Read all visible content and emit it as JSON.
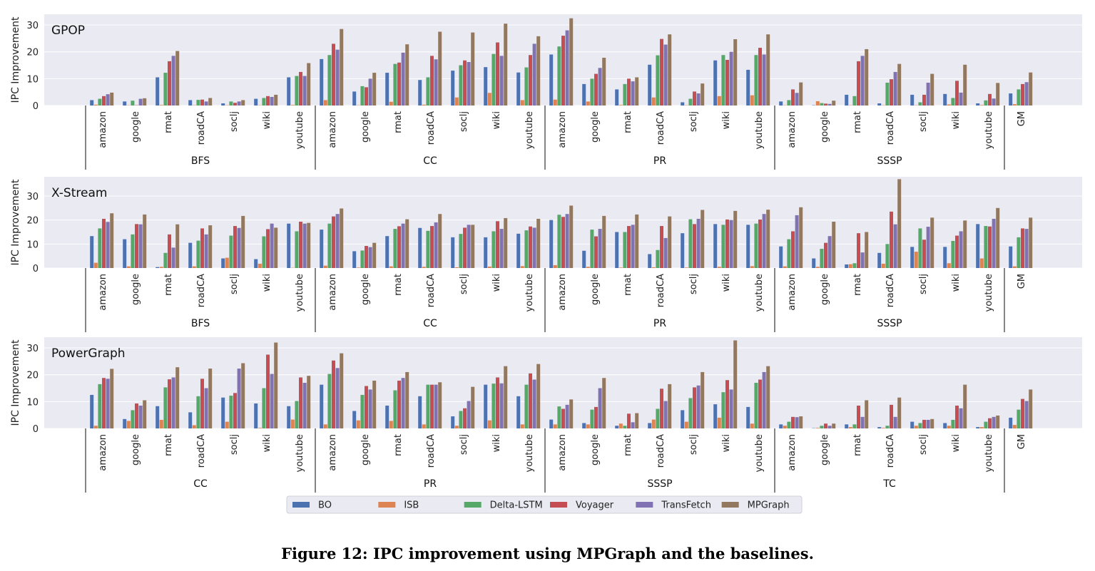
{
  "caption": "Figure 12: IPC improvement using MPGraph and the baselines.",
  "chart_data": {
    "type": "bar",
    "ylabel": "IPC Improvement",
    "legend": {
      "placement": "bottom-center",
      "series": [
        {
          "name": "BO",
          "color": "#4c72b0"
        },
        {
          "name": "ISB",
          "color": "#dd8452"
        },
        {
          "name": "Delta-LSTM",
          "color": "#55a868"
        },
        {
          "name": "Voyager",
          "color": "#c44e52"
        },
        {
          "name": "TransFetch",
          "color": "#8172b3"
        },
        {
          "name": "MPGraph",
          "color": "#937860"
        }
      ]
    },
    "datasets": [
      "amazon",
      "google",
      "rmat",
      "roadCA",
      "soclj",
      "wiki",
      "youtube"
    ],
    "gm_label": "GM",
    "panels": [
      {
        "title": "GPOP",
        "ylim": [
          0,
          34
        ],
        "yticks": [
          0,
          10,
          20,
          30
        ],
        "groups": [
          {
            "name": "BFS",
            "values": [
              [
                2,
                0.3,
                2.5,
                3.5,
                4.2,
                4.8
              ],
              [
                1.5,
                0.1,
                1.8,
                0.1,
                2.5,
                2.7
              ],
              [
                10.5,
                0.2,
                12.2,
                16.5,
                18.5,
                20.3
              ],
              [
                2,
                0.1,
                2.1,
                2.2,
                1.5,
                2.8
              ],
              [
                0.8,
                0.1,
                1.5,
                1,
                1.5,
                2
              ],
              [
                2.5,
                0.1,
                2.8,
                3.5,
                3.2,
                4
              ],
              [
                10.5,
                0.2,
                11,
                12.5,
                11,
                15.8
              ]
            ]
          },
          {
            "name": "CC",
            "values": [
              [
                17.3,
                2,
                18.8,
                23,
                20.8,
                28.5
              ],
              [
                5.2,
                0.1,
                7.2,
                6.8,
                10,
                12.2
              ],
              [
                12.2,
                1.4,
                15.5,
                16,
                19.7,
                22.8
              ],
              [
                9.5,
                0.3,
                10.5,
                18.5,
                17.2,
                27.5
              ],
              [
                13,
                3,
                15,
                16.8,
                16.2,
                27.2
              ],
              [
                14.3,
                4.7,
                19.2,
                23.5,
                18.5,
                30.5
              ],
              [
                12.3,
                2,
                14.2,
                18.8,
                23,
                25.8
              ]
            ]
          },
          {
            "name": "PR",
            "values": [
              [
                19,
                2.2,
                22,
                26,
                28,
                32.5
              ],
              [
                8,
                1.5,
                10,
                11.8,
                14,
                17.8
              ],
              [
                6,
                0.2,
                8,
                10,
                9,
                10.5
              ],
              [
                15.2,
                3,
                18.7,
                24.8,
                22.7,
                26.5
              ],
              [
                1.2,
                0.1,
                2.5,
                5.2,
                4.5,
                8.2
              ],
              [
                16.8,
                3.5,
                18.8,
                17,
                20,
                24.7
              ],
              [
                13.3,
                3.8,
                18.8,
                21.5,
                19,
                26.5
              ]
            ]
          },
          {
            "name": "SSSP",
            "values": [
              [
                1.5,
                0.1,
                2,
                6,
                4.7,
                8.6
              ],
              [
                0.1,
                1.6,
                0.9,
                0.7,
                0.6,
                1.8
              ],
              [
                4,
                0.1,
                3.5,
                16.5,
                18.5,
                21
              ],
              [
                0.8,
                0.1,
                8.5,
                9.8,
                12.5,
                15.5
              ],
              [
                4,
                0.1,
                1.2,
                4,
                8.5,
                11.8
              ],
              [
                4.3,
                0.4,
                2.8,
                9.2,
                4.8,
                15.2
              ],
              [
                0.8,
                0.2,
                1.9,
                4.3,
                2.6,
                8.4
              ]
            ]
          }
        ],
        "gm": [
          4.5,
          0.5,
          6,
          8,
          8.7,
          12.3
        ]
      },
      {
        "title": "X-Stream",
        "ylim": [
          0,
          38
        ],
        "yticks": [
          0,
          10,
          20,
          30
        ],
        "groups": [
          {
            "name": "BFS",
            "values": [
              [
                13.3,
                2.2,
                16.5,
                20.5,
                19.2,
                22.8
              ],
              [
                12,
                0.7,
                14,
                18.3,
                18.2,
                22.3
              ],
              [
                0.4,
                0.5,
                6.3,
                14,
                8.5,
                18.2
              ],
              [
                10.5,
                0.7,
                11.4,
                16.5,
                14,
                17.8
              ],
              [
                4,
                4.3,
                13.5,
                17.5,
                16.7,
                21.7
              ],
              [
                3.7,
                1.8,
                13.2,
                16.2,
                18.5,
                16.8
              ],
              [
                18.5,
                0.1,
                15.3,
                19.3,
                18.5,
                18.8
              ]
            ]
          },
          {
            "name": "CC",
            "values": [
              [
                16,
                1,
                18.5,
                21.5,
                22.5,
                24.8
              ],
              [
                7,
                0.2,
                7.3,
                9.2,
                8.7,
                10.5
              ],
              [
                13.3,
                0.7,
                16.3,
                17.4,
                18.5,
                20.3
              ],
              [
                16.7,
                0.5,
                15.5,
                17.5,
                19,
                22.5
              ],
              [
                12.8,
                0.3,
                14.2,
                16.8,
                18,
                18
              ],
              [
                12.8,
                0.6,
                15.3,
                19.5,
                16.3,
                20.8
              ],
              [
                14.3,
                0.8,
                15.7,
                17.3,
                16.8,
                20.5
              ]
            ]
          },
          {
            "name": "PR",
            "values": [
              [
                20,
                1.2,
                22.2,
                21.3,
                22.5,
                26
              ],
              [
                7.2,
                0.5,
                16,
                13.2,
                16.3,
                21.7
              ],
              [
                15,
                0.2,
                15,
                17.5,
                18,
                22.3
              ],
              [
                5.8,
                0.3,
                7.5,
                17.5,
                12.5,
                21.5
              ],
              [
                14.5,
                0.2,
                20.3,
                18.3,
                20.5,
                24.2
              ],
              [
                18.3,
                0.5,
                18,
                20.2,
                20,
                23.8
              ],
              [
                18,
                0.8,
                18.5,
                20.2,
                22.5,
                24.3
              ]
            ]
          },
          {
            "name": "SSSP",
            "values": [
              [
                9,
                0.7,
                12,
                15.3,
                22,
                25.3
              ],
              [
                4,
                0.5,
                8,
                10.5,
                13.3,
                19.3
              ],
              [
                1.5,
                1.6,
                2,
                14.5,
                6.5,
                15
              ],
              [
                6.3,
                1.8,
                10,
                23.5,
                18.2,
                37
              ],
              [
                8.8,
                6.8,
                16.5,
                11.8,
                17.2,
                21
              ],
              [
                8.8,
                2,
                11.3,
                13.5,
                15.3,
                19.8
              ],
              [
                18.3,
                4,
                17.5,
                17.3,
                20.5,
                25
              ]
            ]
          }
        ],
        "gm": [
          9,
          0.7,
          12.8,
          16.5,
          16.3,
          21
        ]
      },
      {
        "title": "PowerGraph",
        "ylim": [
          0,
          34
        ],
        "yticks": [
          0,
          10,
          20,
          30
        ],
        "groups": [
          {
            "name": "CC",
            "values": [
              [
                12.5,
                1,
                16.5,
                18.8,
                18.5,
                22.2
              ],
              [
                3.5,
                2.8,
                6.8,
                9.3,
                8.5,
                10.5
              ],
              [
                8.3,
                3.2,
                15.3,
                18.3,
                19,
                22.8
              ],
              [
                6,
                1.2,
                12,
                18.5,
                15,
                22.3
              ],
              [
                11.5,
                2.5,
                12.2,
                13.2,
                22.3,
                24.3
              ],
              [
                9.3,
                0.2,
                15,
                27.5,
                20.3,
                32
              ],
              [
                8.3,
                3.3,
                10.2,
                19,
                17,
                19.6
              ]
            ]
          },
          {
            "name": "PR",
            "values": [
              [
                16.3,
                1.5,
                20.3,
                25.3,
                22.5,
                28
              ],
              [
                6.5,
                3,
                12.5,
                15.8,
                14.5,
                17.8
              ],
              [
                8.5,
                2.8,
                14.2,
                17.8,
                18.8,
                21
              ],
              [
                12,
                1.5,
                16.3,
                16.3,
                16.3,
                17.2
              ],
              [
                4.5,
                1,
                6.5,
                7.5,
                10.2,
                15.5
              ],
              [
                16.3,
                3,
                16.7,
                19,
                16.8,
                23.2
              ],
              [
                12,
                1.5,
                16.3,
                20.5,
                18.2,
                24
              ]
            ]
          },
          {
            "name": "SSSP",
            "values": [
              [
                3.3,
                1.5,
                8.2,
                7.3,
                8.8,
                10.8
              ],
              [
                2,
                1.5,
                7,
                8,
                15,
                18.8
              ],
              [
                1,
                1.8,
                1,
                5.5,
                2.3,
                5.7
              ],
              [
                2,
                3.3,
                7.3,
                14.8,
                10.2,
                16.5
              ],
              [
                6.8,
                2.5,
                11.3,
                15.3,
                16,
                21
              ],
              [
                9,
                4,
                13.5,
                18,
                14.5,
                32.8
              ],
              [
                8,
                1.8,
                17,
                18.2,
                21,
                23.2
              ]
            ]
          },
          {
            "name": "TC",
            "values": [
              [
                1.5,
                1,
                2.5,
                4.3,
                4.2,
                4.5
              ],
              [
                0.1,
                0.2,
                1,
                1.8,
                1,
                1.8
              ],
              [
                1.5,
                0.5,
                1.5,
                8.5,
                4.3,
                10.5
              ],
              [
                0.5,
                0.2,
                1,
                8.8,
                4.3,
                11.5
              ],
              [
                2.5,
                1,
                2,
                3.2,
                3.2,
                3.5
              ],
              [
                2,
                1,
                3.2,
                8.5,
                7.5,
                16.3
              ],
              [
                0.5,
                0.5,
                2.5,
                3.8,
                4.3,
                4.8
              ]
            ]
          }
        ],
        "gm": [
          4,
          1.3,
          7,
          11,
          10.2,
          14.5
        ]
      }
    ]
  }
}
